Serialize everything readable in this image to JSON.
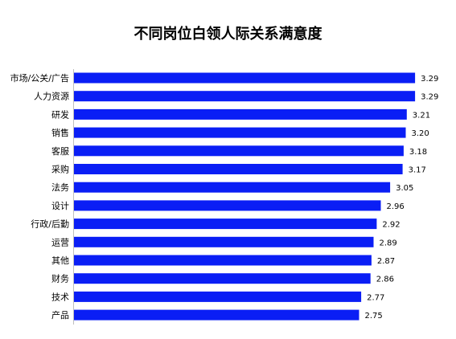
{
  "chart_data": {
    "type": "bar",
    "orientation": "horizontal",
    "title": "不同岗位白领人际关系满意度",
    "xlabel": "",
    "ylabel": "",
    "categories": [
      "市场/公关/广告",
      "人力资源",
      "研发",
      "销售",
      "客服",
      "采购",
      "法务",
      "设计",
      "行政/后勤",
      "运营",
      "其他",
      "财务",
      "技术",
      "产品"
    ],
    "values": [
      3.29,
      3.29,
      3.21,
      3.2,
      3.18,
      3.17,
      3.05,
      2.96,
      2.92,
      2.89,
      2.87,
      2.86,
      2.77,
      2.75
    ],
    "value_labels": [
      "3.29",
      "3.29",
      "3.21",
      "3.20",
      "3.18",
      "3.17",
      "3.05",
      "2.96",
      "2.92",
      "2.89",
      "2.87",
      "2.86",
      "2.77",
      "2.75"
    ],
    "bar_color": "#0a1ef5",
    "grid": false,
    "legend": "none"
  }
}
